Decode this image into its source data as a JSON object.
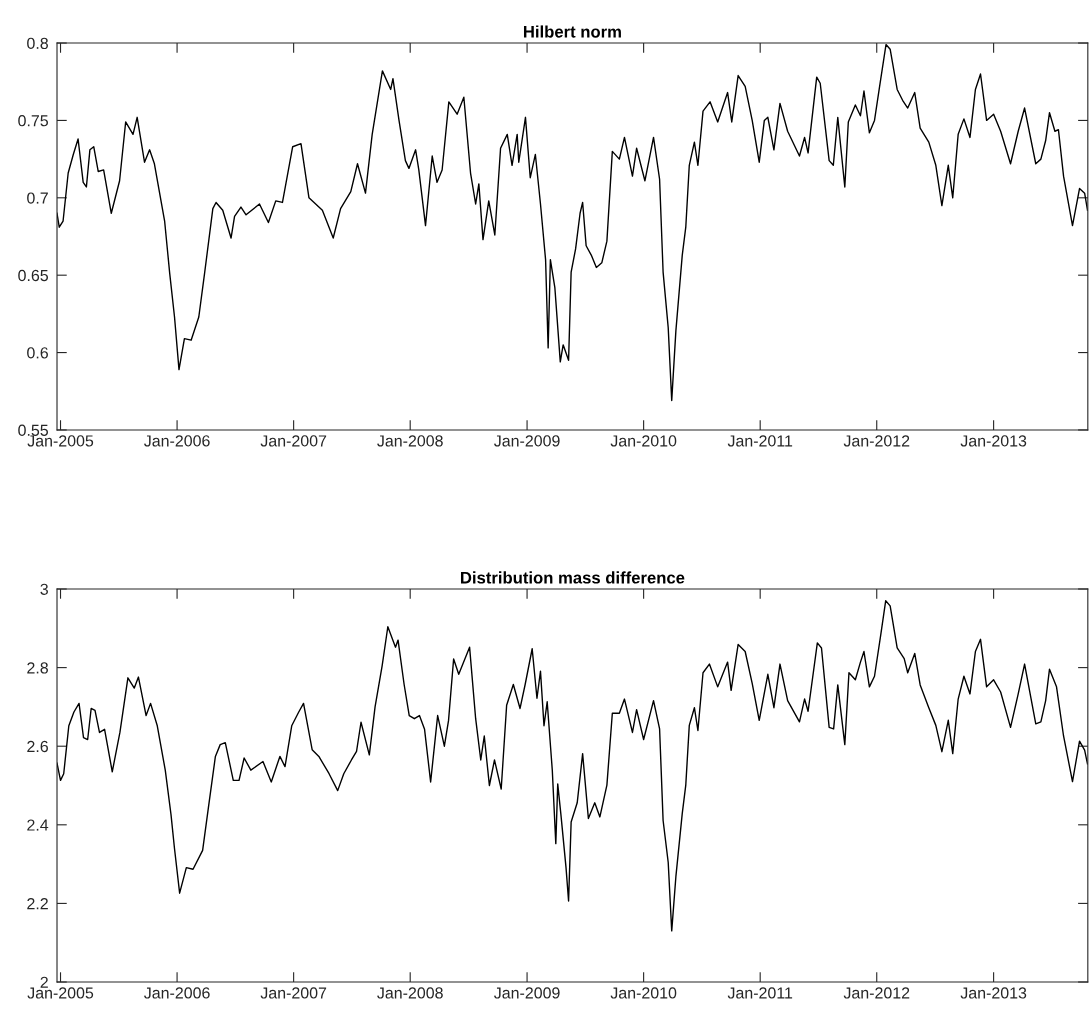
{
  "chart_data": [
    {
      "type": "line",
      "title": "Hilbert norm",
      "xlim": [
        "2004-12-21",
        "2013-10-23"
      ],
      "ylim": [
        0.55,
        0.8
      ],
      "xticks": [
        {
          "value": "2005-01-01",
          "label": "Jan-2005"
        },
        {
          "value": "2006-01-01",
          "label": "Jan-2006"
        },
        {
          "value": "2007-01-01",
          "label": "Jan-2007"
        },
        {
          "value": "2008-01-01",
          "label": "Jan-2008"
        },
        {
          "value": "2009-01-01",
          "label": "Jan-2009"
        },
        {
          "value": "2010-01-01",
          "label": "Jan-2010"
        },
        {
          "value": "2011-01-01",
          "label": "Jan-2011"
        },
        {
          "value": "2012-01-01",
          "label": "Jan-2012"
        },
        {
          "value": "2013-01-01",
          "label": "Jan-2013"
        }
      ],
      "yticks": [
        0.55,
        0.6,
        0.65,
        0.7,
        0.75,
        0.8
      ],
      "grid": false,
      "legend": false,
      "marker": "none",
      "line_style": "solid",
      "series": [
        {
          "color": "#000000",
          "x": [
            "2004-12-21",
            "2004-12-28",
            "2005-01-09",
            "2005-01-25",
            "2005-02-10",
            "2005-02-25",
            "2005-03-13",
            "2005-03-23",
            "2005-04-03",
            "2005-04-15",
            "2005-04-29",
            "2005-05-16",
            "2005-06-09",
            "2005-07-05",
            "2005-07-24",
            "2005-08-16",
            "2005-08-29",
            "2005-09-21",
            "2005-10-07",
            "2005-10-22",
            "2005-11-23",
            "2005-12-09",
            "2005-12-24",
            "2006-01-07",
            "2006-01-24",
            "2006-02-14",
            "2006-03-10",
            "2006-03-28",
            "2006-04-23",
            "2006-05-03",
            "2006-05-24",
            "2006-06-19",
            "2006-06-30",
            "2006-07-20",
            "2006-08-05",
            "2006-09-16",
            "2006-10-14",
            "2006-11-06",
            "2006-11-27",
            "2006-12-29",
            "2007-01-24",
            "2007-02-18",
            "2007-04-01",
            "2007-05-05",
            "2007-05-28",
            "2007-06-29",
            "2007-07-20",
            "2007-08-14",
            "2007-09-04",
            "2007-10-06",
            "2007-11-01",
            "2007-11-08",
            "2007-11-27",
            "2007-12-17",
            "2007-12-28",
            "2008-01-18",
            "2008-01-28",
            "2008-02-18",
            "2008-03-10",
            "2008-03-25",
            "2008-04-10",
            "2008-05-01",
            "2008-05-27",
            "2008-06-17",
            "2008-07-08",
            "2008-07-24",
            "2008-08-03",
            "2008-08-16",
            "2008-09-03",
            "2008-09-22",
            "2008-10-10",
            "2008-10-31",
            "2008-11-15",
            "2008-12-01",
            "2008-12-06",
            "2008-12-27",
            "2009-01-11",
            "2009-01-27",
            "2009-02-12",
            "2009-02-28",
            "2009-03-08",
            "2009-03-15",
            "2009-03-29",
            "2009-04-15",
            "2009-04-24",
            "2009-05-11",
            "2009-05-19",
            "2009-06-02",
            "2009-06-16",
            "2009-06-24",
            "2009-07-05",
            "2009-07-21",
            "2009-08-06",
            "2009-08-23",
            "2009-09-08",
            "2009-09-25",
            "2009-10-17",
            "2009-11-02",
            "2009-11-27",
            "2009-12-10",
            "2010-01-05",
            "2010-02-01",
            "2010-02-20",
            "2010-03-03",
            "2010-03-19",
            "2010-03-30",
            "2010-04-12",
            "2010-05-02",
            "2010-05-13",
            "2010-05-24",
            "2010-06-09",
            "2010-06-20",
            "2010-07-06",
            "2010-07-28",
            "2010-08-21",
            "2010-09-21",
            "2010-10-04",
            "2010-10-24",
            "2010-11-15",
            "2010-12-07",
            "2010-12-29",
            "2011-01-14",
            "2011-01-25",
            "2011-02-13",
            "2011-03-04",
            "2011-03-28",
            "2011-05-04",
            "2011-05-20",
            "2011-05-31",
            "2011-06-27",
            "2011-07-08",
            "2011-08-05",
            "2011-08-18",
            "2011-09-01",
            "2011-09-23",
            "2011-10-04",
            "2011-10-26",
            "2011-11-11",
            "2011-11-22",
            "2011-12-09",
            "2011-12-25",
            "2012-01-10",
            "2012-01-30",
            "2012-02-12",
            "2012-03-05",
            "2012-03-22",
            "2012-04-07",
            "2012-04-29",
            "2012-05-16",
            "2012-06-12",
            "2012-07-04",
            "2012-07-23",
            "2012-08-12",
            "2012-08-26",
            "2012-09-12",
            "2012-09-30",
            "2012-10-19",
            "2012-11-05",
            "2012-11-21",
            "2012-12-10",
            "2013-01-01",
            "2013-01-23",
            "2013-02-23",
            "2013-03-19",
            "2013-04-08",
            "2013-05-13",
            "2013-05-29",
            "2013-06-13",
            "2013-06-25",
            "2013-07-12",
            "2013-07-23",
            "2013-08-08",
            "2013-09-05",
            "2013-09-27",
            "2013-10-13",
            "2013-10-22"
          ],
          "values": [
            0.69,
            0.681,
            0.685,
            0.716,
            0.728,
            0.738,
            0.71,
            0.707,
            0.731,
            0.733,
            0.717,
            0.718,
            0.69,
            0.711,
            0.749,
            0.741,
            0.752,
            0.723,
            0.731,
            0.722,
            0.685,
            0.651,
            0.623,
            0.589,
            0.609,
            0.608,
            0.623,
            0.651,
            0.693,
            0.697,
            0.692,
            0.674,
            0.688,
            0.694,
            0.689,
            0.696,
            0.684,
            0.698,
            0.697,
            0.733,
            0.735,
            0.7,
            0.692,
            0.674,
            0.693,
            0.704,
            0.722,
            0.703,
            0.741,
            0.782,
            0.77,
            0.777,
            0.75,
            0.724,
            0.719,
            0.731,
            0.718,
            0.682,
            0.727,
            0.71,
            0.718,
            0.762,
            0.754,
            0.765,
            0.716,
            0.696,
            0.709,
            0.673,
            0.698,
            0.676,
            0.732,
            0.741,
            0.721,
            0.741,
            0.723,
            0.752,
            0.713,
            0.728,
            0.696,
            0.66,
            0.603,
            0.66,
            0.642,
            0.594,
            0.605,
            0.595,
            0.652,
            0.667,
            0.69,
            0.697,
            0.669,
            0.663,
            0.655,
            0.658,
            0.672,
            0.73,
            0.725,
            0.739,
            0.714,
            0.732,
            0.711,
            0.739,
            0.712,
            0.652,
            0.616,
            0.569,
            0.614,
            0.663,
            0.681,
            0.721,
            0.736,
            0.721,
            0.756,
            0.762,
            0.749,
            0.768,
            0.749,
            0.779,
            0.772,
            0.75,
            0.723,
            0.75,
            0.752,
            0.731,
            0.761,
            0.743,
            0.727,
            0.739,
            0.729,
            0.778,
            0.774,
            0.724,
            0.721,
            0.752,
            0.707,
            0.749,
            0.76,
            0.753,
            0.769,
            0.742,
            0.75,
            0.772,
            0.799,
            0.796,
            0.77,
            0.763,
            0.758,
            0.768,
            0.745,
            0.736,
            0.721,
            0.695,
            0.721,
            0.7,
            0.741,
            0.751,
            0.739,
            0.77,
            0.78,
            0.75,
            0.754,
            0.743,
            0.722,
            0.743,
            0.758,
            0.722,
            0.725,
            0.737,
            0.755,
            0.743,
            0.744,
            0.714,
            0.682,
            0.706,
            0.703,
            0.692
          ]
        }
      ]
    },
    {
      "type": "line",
      "title": "Distribution mass difference",
      "xlim": [
        "2004-12-21",
        "2013-10-23"
      ],
      "ylim": [
        2,
        3
      ],
      "xticks": [
        {
          "value": "2005-01-01",
          "label": "Jan-2005"
        },
        {
          "value": "2006-01-01",
          "label": "Jan-2006"
        },
        {
          "value": "2007-01-01",
          "label": "Jan-2007"
        },
        {
          "value": "2008-01-01",
          "label": "Jan-2008"
        },
        {
          "value": "2009-01-01",
          "label": "Jan-2009"
        },
        {
          "value": "2010-01-01",
          "label": "Jan-2010"
        },
        {
          "value": "2011-01-01",
          "label": "Jan-2011"
        },
        {
          "value": "2012-01-01",
          "label": "Jan-2012"
        },
        {
          "value": "2013-01-01",
          "label": "Jan-2013"
        }
      ],
      "yticks": [
        2,
        2.2,
        2.4,
        2.6,
        2.8,
        3
      ],
      "grid": false,
      "legend": false,
      "marker": "none",
      "line_style": "solid",
      "series": [
        {
          "color": "#000000",
          "x": [
            "2004-12-21",
            "2005-01-01",
            "2005-01-11",
            "2005-01-27",
            "2005-02-12",
            "2005-02-28",
            "2005-03-14",
            "2005-03-27",
            "2005-04-07",
            "2005-04-19",
            "2005-05-03",
            "2005-05-19",
            "2005-06-12",
            "2005-07-06",
            "2005-07-31",
            "2005-08-20",
            "2005-09-02",
            "2005-09-26",
            "2005-10-10",
            "2005-10-31",
            "2005-11-25",
            "2005-12-13",
            "2005-12-24",
            "2006-01-09",
            "2006-01-30",
            "2006-02-20",
            "2006-03-22",
            "2006-04-09",
            "2006-05-01",
            "2006-05-16",
            "2006-06-01",
            "2006-06-26",
            "2006-07-14",
            "2006-07-30",
            "2006-08-20",
            "2006-09-27",
            "2006-10-23",
            "2006-11-19",
            "2006-12-05",
            "2006-12-26",
            "2007-01-17",
            "2007-02-01",
            "2007-02-28",
            "2007-03-21",
            "2007-04-22",
            "2007-05-19",
            "2007-06-07",
            "2007-07-01",
            "2007-07-17",
            "2007-07-31",
            "2007-08-26",
            "2007-09-13",
            "2007-10-05",
            "2007-10-23",
            "2007-11-16",
            "2007-11-24",
            "2007-12-13",
            "2007-12-29",
            "2008-01-14",
            "2008-01-30",
            "2008-02-15",
            "2008-03-05",
            "2008-03-27",
            "2008-04-17",
            "2008-04-30",
            "2008-05-16",
            "2008-06-01",
            "2008-07-05",
            "2008-07-24",
            "2008-08-09",
            "2008-08-20",
            "2008-09-05",
            "2008-09-21",
            "2008-10-12",
            "2008-10-29",
            "2008-11-19",
            "2008-12-10",
            "2008-12-26",
            "2009-01-17",
            "2009-02-01",
            "2009-02-12",
            "2009-02-23",
            "2009-03-05",
            "2009-03-21",
            "2009-04-01",
            "2009-04-07",
            "2009-04-17",
            "2009-05-03",
            "2009-05-11",
            "2009-05-19",
            "2009-06-07",
            "2009-06-24",
            "2009-07-12",
            "2009-08-01",
            "2009-08-17",
            "2009-09-08",
            "2009-09-25",
            "2009-10-17",
            "2009-11-02",
            "2009-11-27",
            "2009-12-10",
            "2010-01-01",
            "2010-02-01",
            "2010-02-20",
            "2010-03-03",
            "2010-03-19",
            "2010-03-30",
            "2010-04-12",
            "2010-05-02",
            "2010-05-13",
            "2010-05-24",
            "2010-06-09",
            "2010-06-20",
            "2010-07-06",
            "2010-07-26",
            "2010-08-21",
            "2010-09-21",
            "2010-10-02",
            "2010-10-24",
            "2010-11-15",
            "2010-12-07",
            "2010-12-29",
            "2011-01-25",
            "2011-02-13",
            "2011-03-04",
            "2011-03-28",
            "2011-05-04",
            "2011-05-20",
            "2011-05-31",
            "2011-06-29",
            "2011-07-12",
            "2011-08-05",
            "2011-08-19",
            "2011-09-01",
            "2011-09-23",
            "2011-10-06",
            "2011-10-26",
            "2011-11-11",
            "2011-11-22",
            "2011-12-09",
            "2011-12-25",
            "2012-01-14",
            "2012-01-29",
            "2012-02-12",
            "2012-03-05",
            "2012-03-27",
            "2012-04-07",
            "2012-04-29",
            "2012-05-16",
            "2012-06-12",
            "2012-07-04",
            "2012-07-23",
            "2012-08-12",
            "2012-08-26",
            "2012-09-12",
            "2012-09-30",
            "2012-10-19",
            "2012-11-05",
            "2012-11-21",
            "2012-12-10",
            "2013-01-01",
            "2013-01-23",
            "2013-02-23",
            "2013-03-19",
            "2013-04-08",
            "2013-05-13",
            "2013-05-29",
            "2013-06-13",
            "2013-06-25",
            "2013-07-17",
            "2013-08-08",
            "2013-09-05",
            "2013-09-27",
            "2013-10-13",
            "2013-10-22"
          ],
          "values": [
            2.557,
            2.513,
            2.53,
            2.652,
            2.687,
            2.709,
            2.622,
            2.617,
            2.696,
            2.691,
            2.635,
            2.643,
            2.535,
            2.635,
            2.774,
            2.748,
            2.776,
            2.678,
            2.709,
            2.652,
            2.539,
            2.426,
            2.339,
            2.226,
            2.291,
            2.287,
            2.335,
            2.443,
            2.574,
            2.604,
            2.609,
            2.513,
            2.513,
            2.57,
            2.539,
            2.561,
            2.509,
            2.574,
            2.548,
            2.652,
            2.687,
            2.709,
            2.591,
            2.574,
            2.53,
            2.487,
            2.53,
            2.565,
            2.587,
            2.661,
            2.578,
            2.7,
            2.804,
            2.904,
            2.852,
            2.87,
            2.757,
            2.678,
            2.67,
            2.678,
            2.643,
            2.509,
            2.678,
            2.6,
            2.665,
            2.822,
            2.783,
            2.852,
            2.67,
            2.565,
            2.626,
            2.5,
            2.565,
            2.491,
            2.704,
            2.757,
            2.696,
            2.757,
            2.848,
            2.722,
            2.791,
            2.652,
            2.713,
            2.539,
            2.352,
            2.504,
            2.426,
            2.291,
            2.206,
            2.407,
            2.456,
            2.581,
            2.416,
            2.456,
            2.42,
            2.501,
            2.684,
            2.684,
            2.72,
            2.635,
            2.693,
            2.617,
            2.716,
            2.644,
            2.411,
            2.304,
            2.13,
            2.268,
            2.429,
            2.501,
            2.653,
            2.698,
            2.64,
            2.787,
            2.809,
            2.751,
            2.814,
            2.742,
            2.859,
            2.841,
            2.76,
            2.666,
            2.783,
            2.698,
            2.809,
            2.716,
            2.662,
            2.72,
            2.689,
            2.863,
            2.85,
            2.648,
            2.644,
            2.756,
            2.604,
            2.787,
            2.769,
            2.814,
            2.841,
            2.751,
            2.778,
            2.886,
            2.97,
            2.957,
            2.85,
            2.823,
            2.787,
            2.836,
            2.756,
            2.698,
            2.653,
            2.586,
            2.666,
            2.581,
            2.72,
            2.778,
            2.733,
            2.841,
            2.872,
            2.751,
            2.769,
            2.738,
            2.648,
            2.733,
            2.809,
            2.657,
            2.662,
            2.716,
            2.796,
            2.751,
            2.626,
            2.51,
            2.613,
            2.59,
            2.555
          ]
        }
      ]
    }
  ]
}
